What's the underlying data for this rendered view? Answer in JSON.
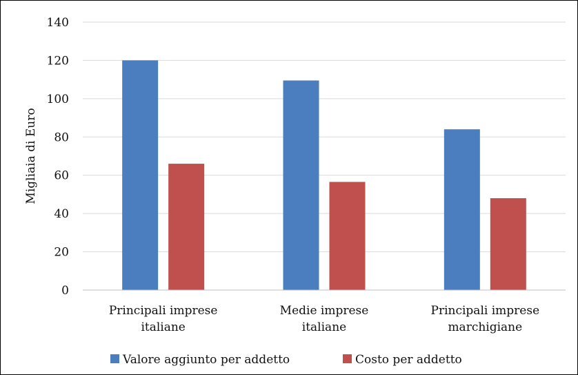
{
  "chart_data": {
    "type": "bar",
    "ylabel": "Migliaia di Euro",
    "ylim": [
      0,
      140
    ],
    "yticks": [
      0,
      20,
      40,
      60,
      80,
      100,
      120,
      140
    ],
    "grid": true,
    "legend_position": "bottom",
    "categories": [
      [
        "Principali imprese",
        "italiane"
      ],
      [
        "Medie imprese",
        "italiane"
      ],
      [
        "Principali imprese",
        "marchigiane"
      ]
    ],
    "series": [
      {
        "name": "Valore aggiunto per addetto",
        "color": "#4a7ebf",
        "values": [
          120,
          109.5,
          84
        ]
      },
      {
        "name": "Costo per addetto",
        "color": "#c0504d",
        "values": [
          66,
          56.5,
          48
        ]
      }
    ]
  }
}
